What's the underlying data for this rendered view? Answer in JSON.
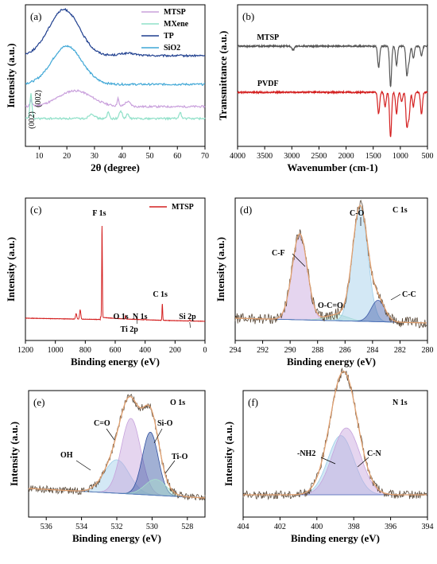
{
  "chart_data": [
    {
      "panel": "(a)",
      "type": "line",
      "xlabel": "2θ (degree)",
      "ylabel": "Intensity (a.u.)",
      "xlim": [
        5,
        70
      ],
      "x_ticks": [
        "10",
        "20",
        "30",
        "40",
        "50",
        "60",
        "70"
      ],
      "legend": "top-right",
      "series": [
        {
          "name": "MTSP",
          "color": "#c9a0dc",
          "peaks": [
            {
              "x": 7,
              "h": 0.35,
              "w": 0.4
            },
            {
              "x": 23,
              "h": 1.0,
              "w": 6
            },
            {
              "x": 38.5,
              "h": 0.5,
              "w": 0.3
            },
            {
              "x": 42,
              "h": 0.3,
              "w": 1
            }
          ]
        },
        {
          "name": "MXene",
          "color": "#8fe0c8",
          "peaks": [
            {
              "x": 7,
              "h": 1.6,
              "w": 0.35
            },
            {
              "x": 29,
              "h": 0.3,
              "w": 1
            },
            {
              "x": 35,
              "h": 0.4,
              "w": 0.4
            },
            {
              "x": 39.5,
              "h": 0.5,
              "w": 0.5
            },
            {
              "x": 42,
              "h": 0.3,
              "w": 0.4
            },
            {
              "x": 61,
              "h": 0.4,
              "w": 0.4
            }
          ]
        },
        {
          "name": "TP",
          "color": "#1f3f8f",
          "peaks": [
            {
              "x": 19,
              "h": 2.9,
              "w": 5.5
            },
            {
              "x": 42,
              "h": 0.15,
              "w": 3
            }
          ]
        },
        {
          "name": "SiO2",
          "color": "#3fa7d6",
          "peaks": [
            {
              "x": 20,
              "h": 2.4,
              "w": 5.5
            }
          ]
        }
      ],
      "annotations": [
        "(002)",
        "(002)"
      ]
    },
    {
      "panel": "(b)",
      "type": "line",
      "xlabel": "Wavenumber (cm-1)",
      "ylabel": "Transmittance (a.u.)",
      "xlim": [
        4000,
        500
      ],
      "x_ticks": [
        "4000",
        "3500",
        "3000",
        "2500",
        "2000",
        "1500",
        "1000",
        "500"
      ],
      "series": [
        {
          "name": "MTSP",
          "color": "#555555",
          "label": "MTSP",
          "dips": [
            {
              "x": 1400,
              "d": 0.45
            },
            {
              "x": 1180,
              "d": 0.85
            },
            {
              "x": 1070,
              "d": 0.4
            },
            {
              "x": 880,
              "d": 0.6
            },
            {
              "x": 840,
              "d": 0.3
            },
            {
              "x": 760,
              "d": 0.25
            },
            {
              "x": 610,
              "d": 0.2
            }
          ]
        },
        {
          "name": "PVDF",
          "color": "#d42020",
          "label": "PVDF",
          "dips": [
            {
              "x": 1400,
              "d": 0.45
            },
            {
              "x": 1280,
              "d": 0.3
            },
            {
              "x": 1180,
              "d": 0.95
            },
            {
              "x": 1070,
              "d": 0.45
            },
            {
              "x": 975,
              "d": 0.2
            },
            {
              "x": 880,
              "d": 0.7
            },
            {
              "x": 840,
              "d": 0.5
            },
            {
              "x": 760,
              "d": 0.3
            },
            {
              "x": 610,
              "d": 0.45
            }
          ]
        }
      ]
    },
    {
      "panel": "(c)",
      "type": "line",
      "xlabel": "Binding energy (eV)",
      "ylabel": "Intensity (a.u.)",
      "xlim": [
        1200,
        0
      ],
      "x_ticks": [
        "1200",
        "1000",
        "800",
        "600",
        "400",
        "200",
        "0"
      ],
      "legend": "top-right",
      "series": [
        {
          "name": "MTSP",
          "color": "#d42020",
          "peaks": [
            {
              "x": 688,
              "h": 10,
              "w": 2.2
            },
            {
              "x": 834,
              "h": 1.0,
              "w": 4
            },
            {
              "x": 861,
              "h": 0.6,
              "w": 4
            },
            {
              "x": 285,
              "h": 1.8,
              "w": 2.2
            },
            {
              "x": 531,
              "h": 0.35,
              "w": 2
            },
            {
              "x": 456,
              "h": 0.15,
              "w": 2
            },
            {
              "x": 400,
              "h": 0.15,
              "w": 2
            },
            {
              "x": 102,
              "h": 0.15,
              "w": 2
            }
          ]
        }
      ],
      "annotations": [
        "F 1s",
        "C 1s",
        "O 1s",
        "N 1s",
        "Ti 2p",
        "Si 2p"
      ]
    },
    {
      "panel": "(d)",
      "type": "area",
      "xlabel": "Binding energy (eV)",
      "ylabel": "Intensity (a.u.)",
      "xlim": [
        294,
        280
      ],
      "x_ticks": [
        "294",
        "292",
        "290",
        "288",
        "286",
        "284",
        "282",
        "280"
      ],
      "title": "C 1s",
      "components": [
        {
          "name": "C-F",
          "center": 289.3,
          "height": 0.72,
          "sigma": 0.55,
          "color": "#c6a2dc"
        },
        {
          "name": "O-C=O",
          "center": 286.6,
          "height": 0.05,
          "sigma": 0.8,
          "color": "#a8e0cc"
        },
        {
          "name": "C-O",
          "center": 284.9,
          "height": 0.96,
          "sigma": 0.55,
          "color": "#9ecde8"
        },
        {
          "name": "C-C",
          "center": 283.6,
          "height": 0.18,
          "sigma": 0.5,
          "color": "#3d5aa8"
        }
      ]
    },
    {
      "panel": "(e)",
      "type": "area",
      "xlabel": "Binding energy (eV)",
      "ylabel": "Intensity (a.u.)",
      "xlim": [
        537,
        527
      ],
      "x_ticks": [
        "536",
        "534",
        "532",
        "530",
        "528"
      ],
      "title": "O 1s",
      "components": [
        {
          "name": "OH",
          "center": 532.0,
          "height": 0.42,
          "sigma": 0.7,
          "color": "#9ecde8"
        },
        {
          "name": "C=O",
          "center": 531.2,
          "height": 0.95,
          "sigma": 0.55,
          "color": "#c6a2dc"
        },
        {
          "name": "Si-O",
          "center": 530.1,
          "height": 0.79,
          "sigma": 0.45,
          "color": "#2f4f9f"
        },
        {
          "name": "Ti-O",
          "center": 529.8,
          "height": 0.2,
          "sigma": 0.6,
          "color": "#a8e0cc"
        }
      ]
    },
    {
      "panel": "(f)",
      "type": "area",
      "xlabel": "Binding energy (eV)",
      "ylabel": "Intensity (a.u.)",
      "xlim": [
        404,
        394
      ],
      "x_ticks": [
        "404",
        "402",
        "400",
        "398",
        "396",
        "394"
      ],
      "title": "N 1s",
      "components": [
        {
          "name": "-NH2",
          "center": 398.7,
          "height": 0.62,
          "sigma": 0.7,
          "color": "#9ecde8"
        },
        {
          "name": "C-N",
          "center": 398.4,
          "height": 0.7,
          "sigma": 0.75,
          "color": "#c6a2dc"
        }
      ]
    }
  ]
}
